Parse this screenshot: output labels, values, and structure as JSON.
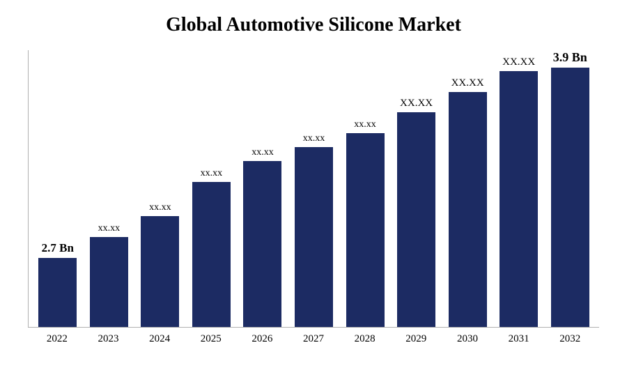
{
  "chart": {
    "type": "bar",
    "title": "Global Automotive Silicone Market",
    "title_fontsize": 28,
    "title_fontweight": "bold",
    "title_color": "#000000",
    "background_color": "#ffffff",
    "axis_color": "#b0b0b0",
    "categories": [
      "2022",
      "2023",
      "2024",
      "2025",
      "2026",
      "2027",
      "2028",
      "2029",
      "2030",
      "2031",
      "2032"
    ],
    "values": [
      100,
      130,
      160,
      210,
      240,
      260,
      280,
      310,
      340,
      370,
      400
    ],
    "value_labels": [
      "2.7 Bn",
      "xx.xx",
      "xx.xx",
      "xx.xx",
      "xx.xx",
      "xx.xx",
      "xx.xx",
      "XX.XX",
      "XX.XX",
      "XX.XX",
      "3.9 Bn"
    ],
    "label_bold": [
      true,
      false,
      false,
      false,
      false,
      false,
      false,
      false,
      false,
      false,
      true
    ],
    "label_font_sizes": [
      17,
      14,
      14,
      14,
      14,
      14,
      14,
      15,
      15,
      15,
      18
    ],
    "bar_color": "#1c2b63",
    "bar_max_width": 55,
    "y_max": 400,
    "cat_label_fontsize": 15,
    "cat_label_color": "#000000",
    "value_label_color": "#000000"
  }
}
